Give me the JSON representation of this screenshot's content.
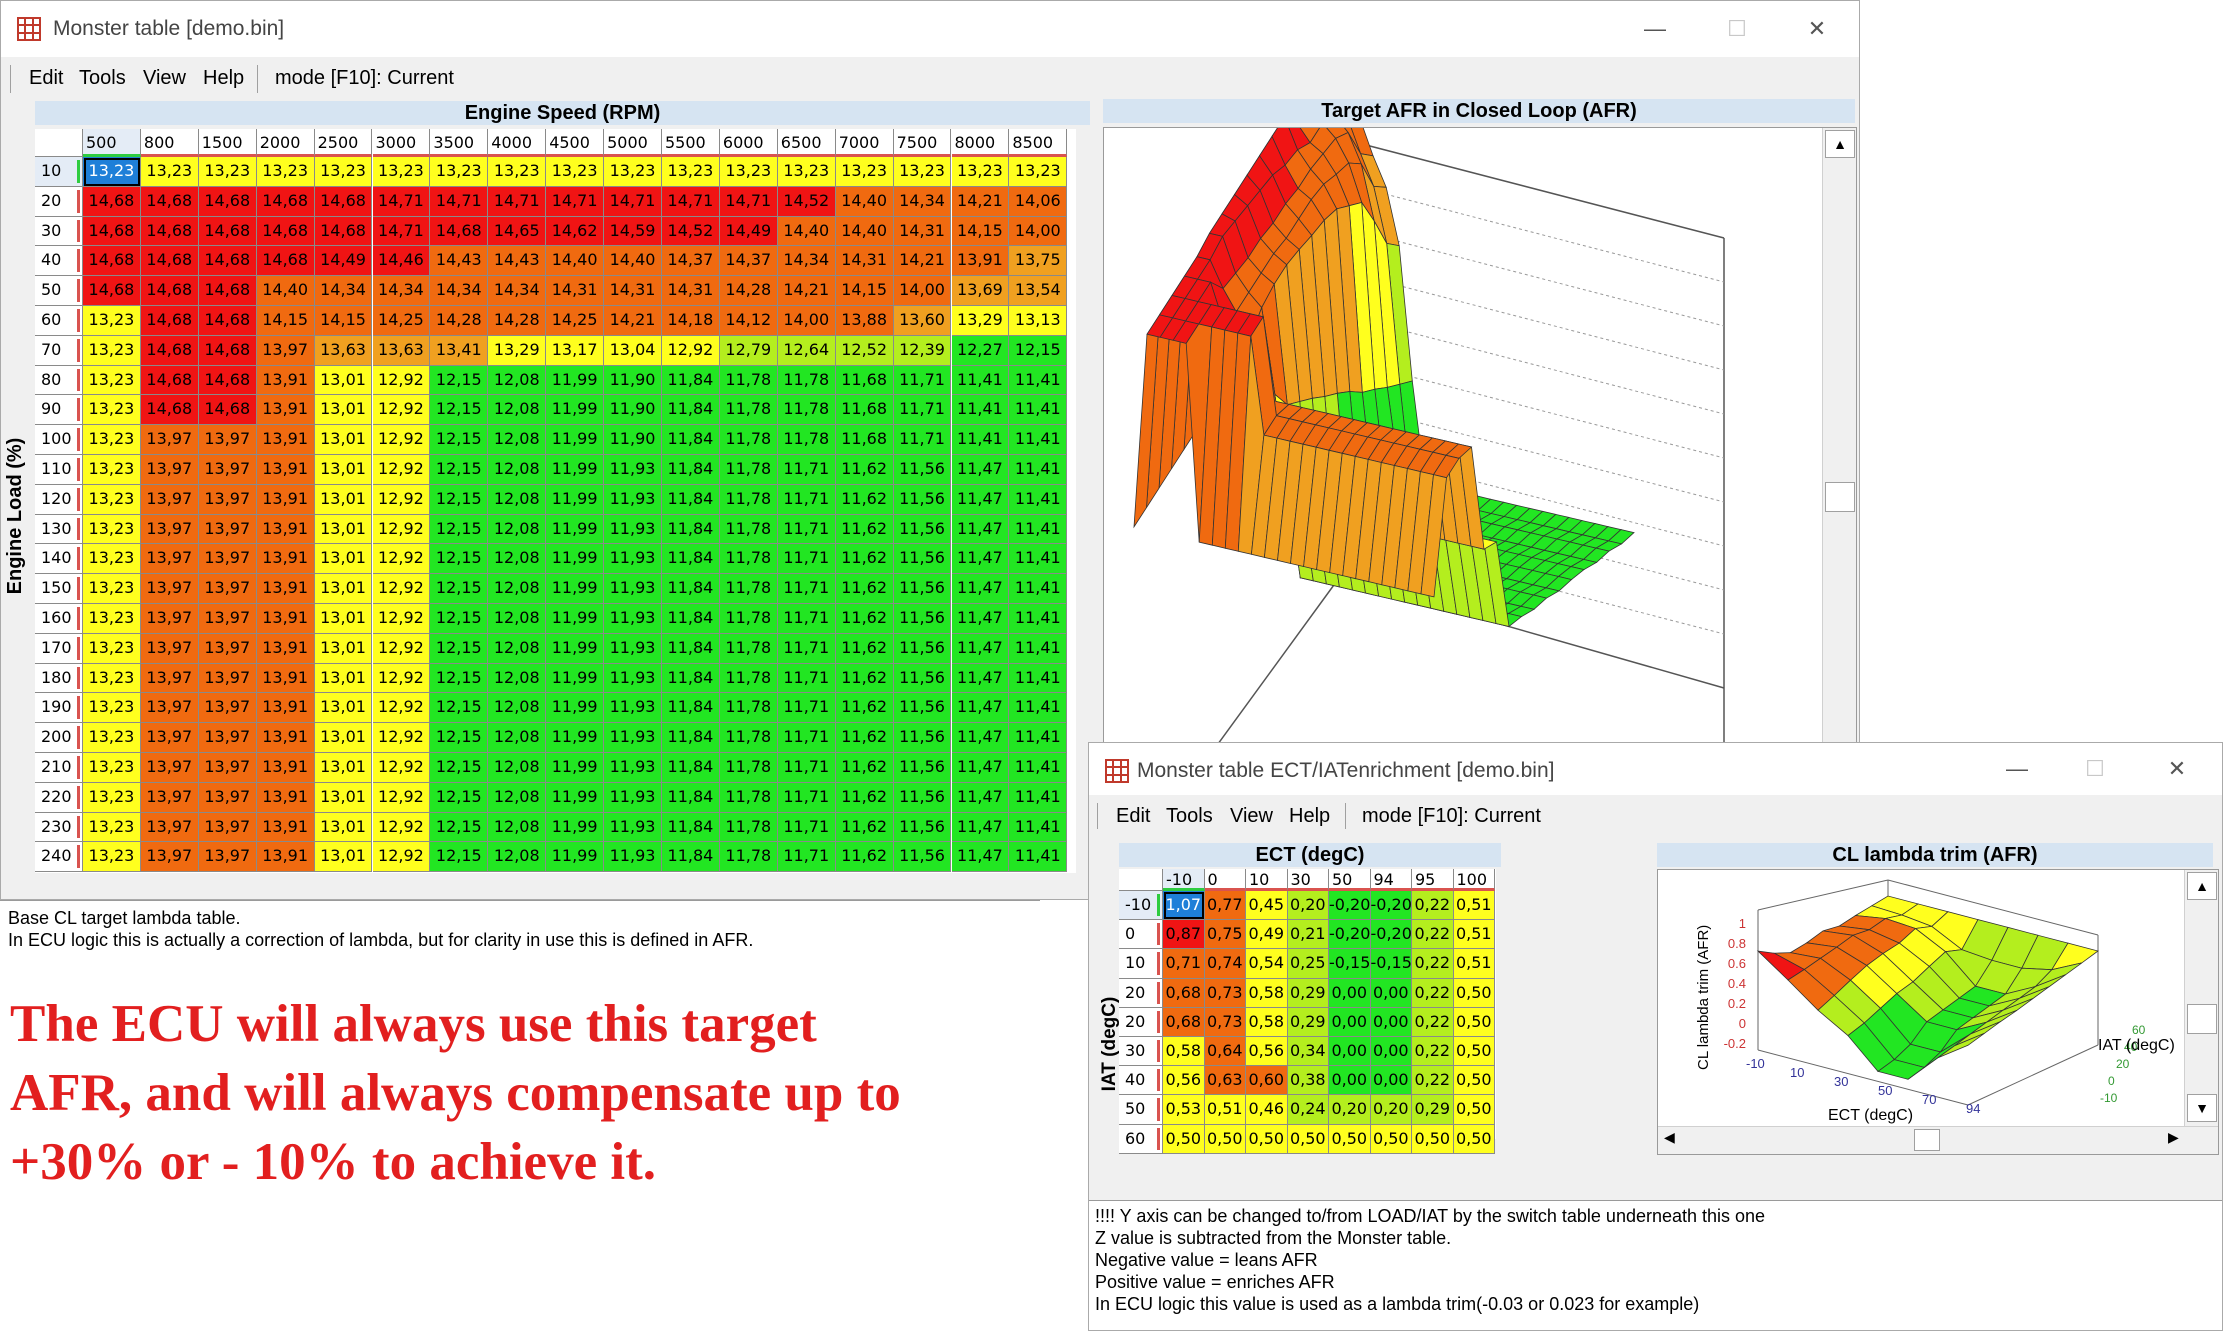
{
  "main_window": {
    "title": "Monster table [demo.bin]",
    "menu": [
      "Edit",
      "Tools",
      "View",
      "Help"
    ],
    "mode": "mode [F10]: Current",
    "x_axis_title": "Engine Speed (RPM)",
    "y_axis_title": "Engine Load (%)",
    "chart_title": "Target AFR in Closed Loop (AFR)",
    "cols": [
      "500",
      "800",
      "1500",
      "2000",
      "2500",
      "3000",
      "3500",
      "4000",
      "4500",
      "5000",
      "5500",
      "6000",
      "6500",
      "7000",
      "7500",
      "8000",
      "8500"
    ],
    "rows": [
      "10",
      "20",
      "30",
      "40",
      "50",
      "60",
      "70",
      "80",
      "90",
      "100",
      "110",
      "120",
      "130",
      "140",
      "150",
      "160",
      "170",
      "180",
      "190",
      "200",
      "210",
      "220",
      "230",
      "240"
    ],
    "values": [
      [
        "13,23",
        "13,23",
        "13,23",
        "13,23",
        "13,23",
        "13,23",
        "13,23",
        "13,23",
        "13,23",
        "13,23",
        "13,23",
        "13,23",
        "13,23",
        "13,23",
        "13,23",
        "13,23",
        "13,23"
      ],
      [
        "14,68",
        "14,68",
        "14,68",
        "14,68",
        "14,68",
        "14,71",
        "14,71",
        "14,71",
        "14,71",
        "14,71",
        "14,71",
        "14,71",
        "14,52",
        "14,40",
        "14,34",
        "14,21",
        "14,06"
      ],
      [
        "14,68",
        "14,68",
        "14,68",
        "14,68",
        "14,68",
        "14,71",
        "14,68",
        "14,65",
        "14,62",
        "14,59",
        "14,52",
        "14,49",
        "14,40",
        "14,40",
        "14,31",
        "14,15",
        "14,00"
      ],
      [
        "14,68",
        "14,68",
        "14,68",
        "14,68",
        "14,49",
        "14,46",
        "14,43",
        "14,43",
        "14,40",
        "14,40",
        "14,37",
        "14,37",
        "14,34",
        "14,31",
        "14,21",
        "13,91",
        "13,75"
      ],
      [
        "14,68",
        "14,68",
        "14,68",
        "14,40",
        "14,34",
        "14,34",
        "14,34",
        "14,34",
        "14,31",
        "14,31",
        "14,31",
        "14,28",
        "14,21",
        "14,15",
        "14,00",
        "13,69",
        "13,54"
      ],
      [
        "13,23",
        "14,68",
        "14,68",
        "14,15",
        "14,15",
        "14,25",
        "14,28",
        "14,28",
        "14,25",
        "14,21",
        "14,18",
        "14,12",
        "14,00",
        "13,88",
        "13,60",
        "13,29",
        "13,13"
      ],
      [
        "13,23",
        "14,68",
        "14,68",
        "13,97",
        "13,63",
        "13,63",
        "13,41",
        "13,29",
        "13,17",
        "13,04",
        "12,92",
        "12,79",
        "12,64",
        "12,52",
        "12,39",
        "12,27",
        "12,15"
      ],
      [
        "13,23",
        "14,68",
        "14,68",
        "13,91",
        "13,01",
        "12,92",
        "12,15",
        "12,08",
        "11,99",
        "11,90",
        "11,84",
        "11,78",
        "11,78",
        "11,68",
        "11,71",
        "11,41",
        "11,41"
      ],
      [
        "13,23",
        "14,68",
        "14,68",
        "13,91",
        "13,01",
        "12,92",
        "12,15",
        "12,08",
        "11,99",
        "11,90",
        "11,84",
        "11,78",
        "11,78",
        "11,68",
        "11,71",
        "11,41",
        "11,41"
      ],
      [
        "13,23",
        "13,97",
        "13,97",
        "13,91",
        "13,01",
        "12,92",
        "12,15",
        "12,08",
        "11,99",
        "11,90",
        "11,84",
        "11,78",
        "11,78",
        "11,68",
        "11,71",
        "11,41",
        "11,41"
      ],
      [
        "13,23",
        "13,97",
        "13,97",
        "13,91",
        "13,01",
        "12,92",
        "12,15",
        "12,08",
        "11,99",
        "11,93",
        "11,84",
        "11,78",
        "11,71",
        "11,62",
        "11,56",
        "11,47",
        "11,41"
      ],
      [
        "13,23",
        "13,97",
        "13,97",
        "13,91",
        "13,01",
        "12,92",
        "12,15",
        "12,08",
        "11,99",
        "11,93",
        "11,84",
        "11,78",
        "11,71",
        "11,62",
        "11,56",
        "11,47",
        "11,41"
      ],
      [
        "13,23",
        "13,97",
        "13,97",
        "13,91",
        "13,01",
        "12,92",
        "12,15",
        "12,08",
        "11,99",
        "11,93",
        "11,84",
        "11,78",
        "11,71",
        "11,62",
        "11,56",
        "11,47",
        "11,41"
      ],
      [
        "13,23",
        "13,97",
        "13,97",
        "13,91",
        "13,01",
        "12,92",
        "12,15",
        "12,08",
        "11,99",
        "11,93",
        "11,84",
        "11,78",
        "11,71",
        "11,62",
        "11,56",
        "11,47",
        "11,41"
      ],
      [
        "13,23",
        "13,97",
        "13,97",
        "13,91",
        "13,01",
        "12,92",
        "12,15",
        "12,08",
        "11,99",
        "11,93",
        "11,84",
        "11,78",
        "11,71",
        "11,62",
        "11,56",
        "11,47",
        "11,41"
      ],
      [
        "13,23",
        "13,97",
        "13,97",
        "13,91",
        "13,01",
        "12,92",
        "12,15",
        "12,08",
        "11,99",
        "11,93",
        "11,84",
        "11,78",
        "11,71",
        "11,62",
        "11,56",
        "11,47",
        "11,41"
      ],
      [
        "13,23",
        "13,97",
        "13,97",
        "13,91",
        "13,01",
        "12,92",
        "12,15",
        "12,08",
        "11,99",
        "11,93",
        "11,84",
        "11,78",
        "11,71",
        "11,62",
        "11,56",
        "11,47",
        "11,41"
      ],
      [
        "13,23",
        "13,97",
        "13,97",
        "13,91",
        "13,01",
        "12,92",
        "12,15",
        "12,08",
        "11,99",
        "11,93",
        "11,84",
        "11,78",
        "11,71",
        "11,62",
        "11,56",
        "11,47",
        "11,41"
      ],
      [
        "13,23",
        "13,97",
        "13,97",
        "13,91",
        "13,01",
        "12,92",
        "12,15",
        "12,08",
        "11,99",
        "11,93",
        "11,84",
        "11,78",
        "11,71",
        "11,62",
        "11,56",
        "11,47",
        "11,41"
      ],
      [
        "13,23",
        "13,97",
        "13,97",
        "13,91",
        "13,01",
        "12,92",
        "12,15",
        "12,08",
        "11,99",
        "11,93",
        "11,84",
        "11,78",
        "11,71",
        "11,62",
        "11,56",
        "11,47",
        "11,41"
      ],
      [
        "13,23",
        "13,97",
        "13,97",
        "13,91",
        "13,01",
        "12,92",
        "12,15",
        "12,08",
        "11,99",
        "11,93",
        "11,84",
        "11,78",
        "11,71",
        "11,62",
        "11,56",
        "11,47",
        "11,41"
      ],
      [
        "13,23",
        "13,97",
        "13,97",
        "13,91",
        "13,01",
        "12,92",
        "12,15",
        "12,08",
        "11,99",
        "11,93",
        "11,84",
        "11,78",
        "11,71",
        "11,62",
        "11,56",
        "11,47",
        "11,41"
      ],
      [
        "13,23",
        "13,97",
        "13,97",
        "13,91",
        "13,01",
        "12,92",
        "12,15",
        "12,08",
        "11,99",
        "11,93",
        "11,84",
        "11,78",
        "11,71",
        "11,62",
        "11,56",
        "11,47",
        "11,41"
      ],
      [
        "13,23",
        "13,97",
        "13,97",
        "13,91",
        "13,01",
        "12,92",
        "12,15",
        "12,08",
        "11,99",
        "11,93",
        "11,84",
        "11,78",
        "11,71",
        "11,62",
        "11,56",
        "11,47",
        "11,41"
      ]
    ],
    "description": [
      "Base CL target lambda table.",
      "In ECU logic this is actually a correction of lambda, but for clarity in use this is defined in AFR."
    ]
  },
  "ect_window": {
    "title": "Monster table ECT/IATenrichment [demo.bin]",
    "menu": [
      "Edit",
      "Tools",
      "View",
      "Help"
    ],
    "mode": "mode [F10]: Current",
    "x_axis_title": "ECT (degC)",
    "y_axis_title": "IAT (degC)",
    "chart_title": "CL lambda trim (AFR)",
    "chart_z_label": "CL lambda trim (AFR)",
    "chart_x_label": "ECT (degC)",
    "chart_y_label": "IAT (degC)",
    "z_ticks": [
      "1",
      "0.8",
      "0.6",
      "0.4",
      "0.2",
      "0",
      "-0.2"
    ],
    "x_ticks": [
      "-10",
      "10",
      "30",
      "50",
      "70",
      "94"
    ],
    "y_ticks": [
      "-10",
      "0",
      "20",
      "40",
      "60"
    ],
    "cols": [
      "-10",
      "0",
      "10",
      "30",
      "50",
      "94",
      "95",
      "100"
    ],
    "rows": [
      "-10",
      "0",
      "10",
      "20",
      "20",
      "30",
      "40",
      "50",
      "60"
    ],
    "values": [
      [
        "1,07",
        "0,77",
        "0,45",
        "0,20",
        "-0,20",
        "-0,20",
        "0,22",
        "0,51"
      ],
      [
        "0,87",
        "0,75",
        "0,49",
        "0,21",
        "-0,20",
        "-0,20",
        "0,22",
        "0,51"
      ],
      [
        "0,71",
        "0,74",
        "0,54",
        "0,25",
        "-0,15",
        "-0,15",
        "0,22",
        "0,51"
      ],
      [
        "0,68",
        "0,73",
        "0,58",
        "0,29",
        "0,00",
        "0,00",
        "0,22",
        "0,50"
      ],
      [
        "0,68",
        "0,73",
        "0,58",
        "0,29",
        "0,00",
        "0,00",
        "0,22",
        "0,50"
      ],
      [
        "0,58",
        "0,64",
        "0,56",
        "0,34",
        "0,00",
        "0,00",
        "0,22",
        "0,50"
      ],
      [
        "0,56",
        "0,63",
        "0,60",
        "0,38",
        "0,00",
        "0,00",
        "0,22",
        "0,50"
      ],
      [
        "0,53",
        "0,51",
        "0,46",
        "0,24",
        "0,20",
        "0,20",
        "0,29",
        "0,50"
      ],
      [
        "0,50",
        "0,50",
        "0,50",
        "0,50",
        "0,50",
        "0,50",
        "0,50",
        "0,50"
      ]
    ],
    "description": [
      "!!!! Y axis can be changed to/from LOAD/IAT by the switch table underneath this one",
      "Z value is subtracted from the Monster table.",
      "Negative value = leans AFR",
      "Positive value = enriches AFR",
      "In ECU logic this value is used as a lambda trim(-0.03 or 0.023 for example)"
    ]
  },
  "annotation": [
    "The ECU will always use this target",
    "AFR, and will always compensate up to",
    "+30% or - 10% to achieve it."
  ],
  "colors": {
    "afr_scale": [
      "#f01414",
      "#f06a10",
      "#f0a020",
      "#ffff1e",
      "#b4ee1e",
      "#22e622"
    ],
    "selected": "#1e7fd8",
    "annotation": "#e21f1f"
  }
}
